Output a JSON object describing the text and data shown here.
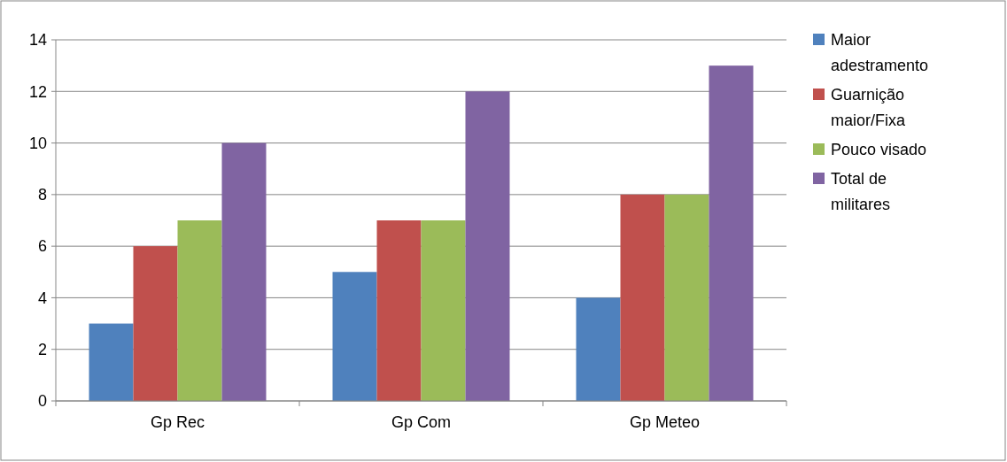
{
  "chart_data": {
    "type": "bar",
    "categories": [
      "Gp Rec",
      "Gp Com",
      "Gp Meteo"
    ],
    "series": [
      {
        "name": "Maior adestramento",
        "color": "#4f81bd",
        "values": [
          3,
          5,
          4
        ]
      },
      {
        "name": "Guarnição maior/Fixa",
        "color": "#c0504d",
        "values": [
          6,
          7,
          8
        ]
      },
      {
        "name": "Pouco visado",
        "color": "#9bbb59",
        "values": [
          7,
          7,
          8
        ]
      },
      {
        "name": "Total de militares",
        "color": "#8064a2",
        "values": [
          10,
          12,
          13
        ]
      }
    ],
    "ylim": [
      0,
      14
    ],
    "yticks": [
      0,
      2,
      4,
      6,
      8,
      10,
      12,
      14
    ],
    "grid": "y",
    "legend": "right"
  }
}
